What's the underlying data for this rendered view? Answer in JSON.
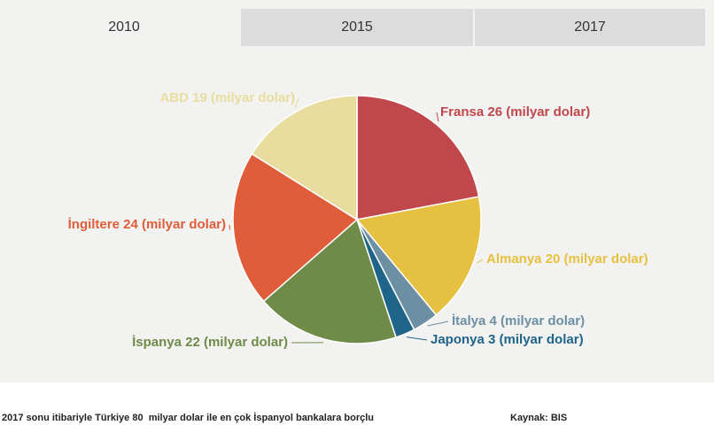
{
  "tabs": {
    "items": [
      "2010",
      "2015",
      "2017"
    ],
    "active": 0
  },
  "chart_data": {
    "type": "pie",
    "values": [
      26,
      20,
      4,
      3,
      22,
      24,
      19
    ],
    "value_labels": [
      "Fransa 26 (milyar dolar)",
      "Almanya 20 (milyar dolar)",
      "İtalya 4 (milyar dolar)",
      "Japonya 3 (milyar dolar)",
      "İspanya 22 (milyar dolar)",
      "İngiltere 24 (milyar dolar)",
      "ABD 19 (milyar dolar)"
    ],
    "colors": [
      "#c0474b",
      "#e6c040",
      "#6d8fa3",
      "#1f6589",
      "#6e8b47",
      "#e05d3b",
      "#e8dc9e"
    ]
  },
  "footer": {
    "note": "2017 sonu itibariyle Türkiye 80  milyar dolar ile en çok İspanyol bankalara borçlu",
    "source": "Kaynak: BIS"
  }
}
